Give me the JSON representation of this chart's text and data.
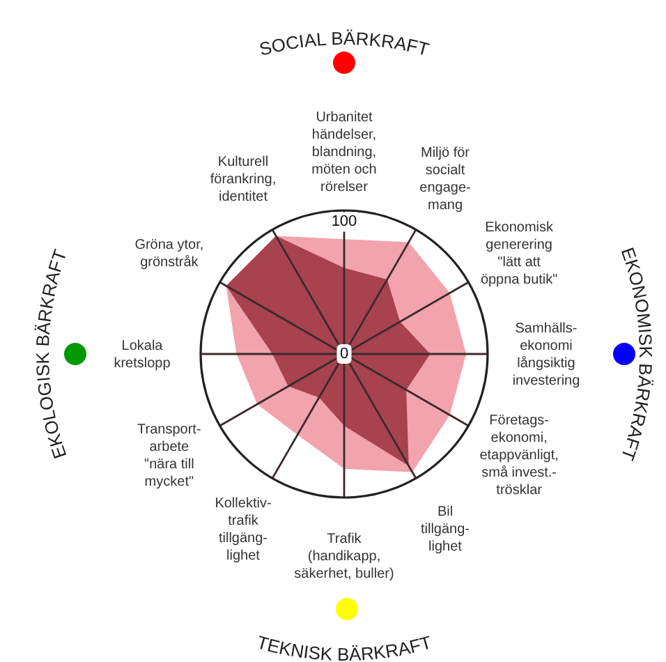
{
  "chart_data": {
    "type": "radar",
    "categories": [
      "Urbanitet\nhändelser,\nblandning,\nmöten och\nrörelser",
      "Miljö för\nsocialt\nengage-\nmang",
      "Ekonomisk\ngenerering\n\"lätt att\nöppna butik\"",
      "Samhälls-\nekonomi\nlångsiktig\ninvestering",
      "Företags-\nekonomi,\netappvänligt,\nsmå invest.-\ntrösklar",
      "Bil\ntillgäng-\nlighet",
      "Trafik\n(handikapp,\nsäkerhet, buller)",
      "Kollektiv-\ntrafik\ntillgäng-\nlighet",
      "Transport-\narbete\n\"nära till\nmycket\"",
      "Lokala\nkretslopp",
      "Gröna ytor,\ngrönstråk",
      "Kulturell\nförankring,\nidentitet"
    ],
    "series": [
      {
        "color": "#f2a3ab",
        "values": [
          80,
          90,
          85,
          85,
          85,
          95,
          80,
          65,
          70,
          75,
          95,
          95
        ]
      },
      {
        "color": "#a8424e",
        "values": [
          60,
          60,
          45,
          60,
          50,
          90,
          50,
          35,
          45,
          50,
          95,
          95
        ]
      }
    ],
    "ylim": [
      0,
      100
    ],
    "yticks": [
      0,
      100
    ],
    "grid": true,
    "annotations": [
      "SOCIAL BÄRKRAFT",
      "EKONOMISK BÄRKRAFT",
      "TEKNISK BÄRKRAFT",
      "EKOLOGISK BÄRKRAFT"
    ]
  }
}
